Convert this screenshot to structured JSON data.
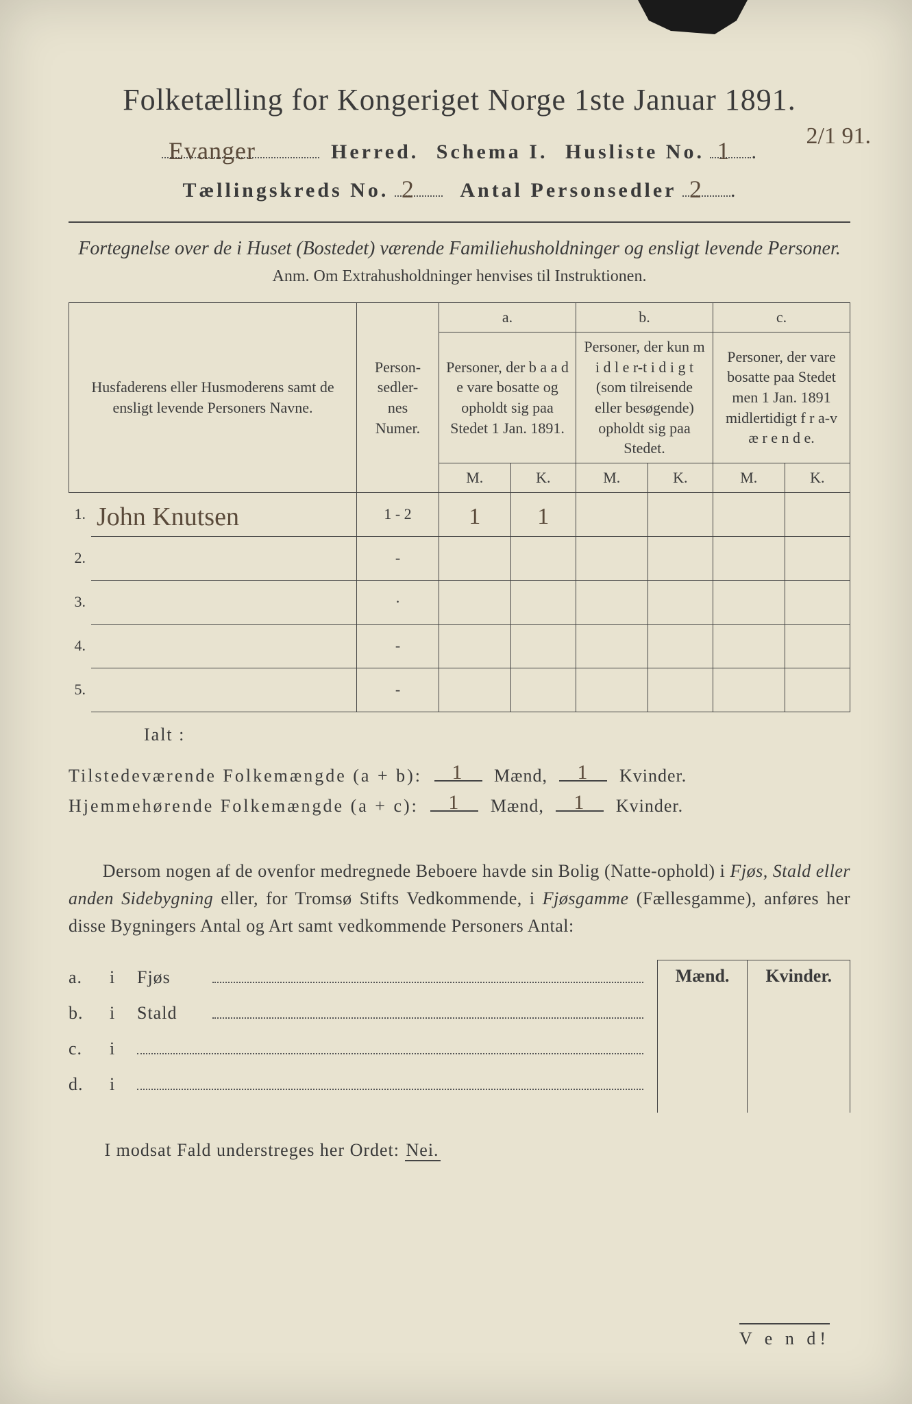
{
  "title": "Folketælling for Kongeriget Norge 1ste Januar 1891.",
  "header": {
    "herred_value": "Evanger",
    "herred_label": "Herred.",
    "schema_label": "Schema I.",
    "husliste_label": "Husliste No.",
    "husliste_value": "1",
    "side_date": "2/1 91.",
    "kreds_label": "Tællingskreds No.",
    "kreds_value": "2",
    "sedler_label": "Antal Personsedler",
    "sedler_value": "2"
  },
  "subtitle_italic": "Fortegnelse over de i Huset (Bostedet) værende Familiehusholdninger og ensligt levende Personer.",
  "anm": "Anm.  Om Extrahusholdninger henvises til Instruktionen.",
  "table": {
    "col_names": "Husfaderens eller Husmoderens samt de ensligt levende Personers Navne.",
    "col_num": "Person-\nsedler-\nnes\nNumer.",
    "col_a_top": "a.",
    "col_a": "Personer, der b a a d e vare bosatte og opholdt sig paa Stedet 1 Jan. 1891.",
    "col_b_top": "b.",
    "col_b": "Personer, der kun m i d l e r-t i d i g t (som tilreisende eller besøgende) opholdt sig paa Stedet.",
    "col_c_top": "c.",
    "col_c": "Personer, der vare bosatte paa Stedet men 1 Jan. 1891 midlertidigt f r a-v æ r e n d e.",
    "m": "M.",
    "k": "K.",
    "rows": [
      {
        "n": "1.",
        "name": "John Knutsen",
        "num": "1 - 2",
        "a_m": "1",
        "a_k": "1",
        "b_m": "",
        "b_k": "",
        "c_m": "",
        "c_k": ""
      },
      {
        "n": "2.",
        "name": "",
        "num": "-",
        "a_m": "",
        "a_k": "",
        "b_m": "",
        "b_k": "",
        "c_m": "",
        "c_k": ""
      },
      {
        "n": "3.",
        "name": "",
        "num": "·",
        "a_m": "",
        "a_k": "",
        "b_m": "",
        "b_k": "",
        "c_m": "",
        "c_k": ""
      },
      {
        "n": "4.",
        "name": "",
        "num": "-",
        "a_m": "",
        "a_k": "",
        "b_m": "",
        "b_k": "",
        "c_m": "",
        "c_k": ""
      },
      {
        "n": "5.",
        "name": "",
        "num": "-",
        "a_m": "",
        "a_k": "",
        "b_m": "",
        "b_k": "",
        "c_m": "",
        "c_k": ""
      }
    ]
  },
  "ialt": "Ialt :",
  "sums": {
    "line1_label": "Tilstedeværende Folkemængde (a + b):",
    "line2_label": "Hjemmehørende Folkemængde (a + c):",
    "maend": "Mænd,",
    "kvinder": "Kvinder.",
    "v1m": "1",
    "v1k": "1",
    "v2m": "1",
    "v2k": "1"
  },
  "para": {
    "t1": "Dersom nogen af de ovenfor medregnede Beboere havde sin Bolig (Natte-ophold) i ",
    "em1": "Fjøs, Stald eller anden Sidebygning",
    "t2": " eller, for Tromsø Stifts Vedkommende, i ",
    "em2": "Fjøsgamme",
    "t3": " (Fællesgamme), anføres her disse Bygningers Antal og Art samt vedkommende Personers Antal:"
  },
  "mk": {
    "m": "Mænd.",
    "k": "Kvinder."
  },
  "list": {
    "a": "a.",
    "b": "b.",
    "c": "c.",
    "d": "d.",
    "i": "i",
    "fjos": "Fjøs",
    "stald": "Stald"
  },
  "modsat": {
    "pre": "I modsat Fald understreges her Ordet: ",
    "nei": "Nei."
  },
  "vend": "V e n d!"
}
